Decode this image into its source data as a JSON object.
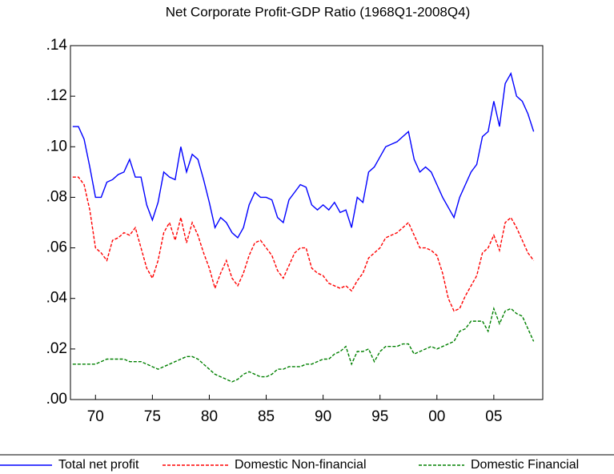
{
  "chart_data": {
    "type": "line",
    "title": "Net Corporate Profit-GDP Ratio (1968Q1-2008Q4)",
    "x": [
      1968,
      1968.5,
      1969,
      1969.5,
      1970,
      1970.5,
      1971,
      1971.5,
      1972,
      1972.5,
      1973,
      1973.5,
      1974,
      1974.5,
      1975,
      1975.5,
      1976,
      1976.5,
      1977,
      1977.5,
      1978,
      1978.5,
      1979,
      1979.5,
      1980,
      1980.5,
      1981,
      1981.5,
      1982,
      1982.5,
      1983,
      1983.5,
      1984,
      1984.5,
      1985,
      1985.5,
      1986,
      1986.5,
      1987,
      1987.5,
      1988,
      1988.5,
      1989,
      1989.5,
      1990,
      1990.5,
      1991,
      1991.5,
      1992,
      1992.5,
      1993,
      1993.5,
      1994,
      1994.5,
      1995,
      1995.5,
      1996,
      1996.5,
      1997,
      1997.5,
      1998,
      1998.5,
      1999,
      1999.5,
      2000,
      2000.5,
      2001,
      2001.5,
      2002,
      2002.5,
      2003,
      2003.5,
      2004,
      2004.5,
      2005,
      2005.5,
      2006,
      2006.5,
      2007,
      2007.5,
      2008,
      2008.5
    ],
    "series": [
      {
        "name": "Total net profit",
        "color": "#0000ff",
        "dash": "solid",
        "values": [
          0.108,
          0.108,
          0.103,
          0.092,
          0.08,
          0.08,
          0.086,
          0.087,
          0.089,
          0.09,
          0.095,
          0.088,
          0.088,
          0.077,
          0.071,
          0.078,
          0.09,
          0.088,
          0.087,
          0.1,
          0.09,
          0.097,
          0.095,
          0.087,
          0.078,
          0.068,
          0.072,
          0.07,
          0.066,
          0.064,
          0.068,
          0.077,
          0.082,
          0.08,
          0.08,
          0.079,
          0.072,
          0.07,
          0.079,
          0.082,
          0.085,
          0.084,
          0.077,
          0.075,
          0.077,
          0.075,
          0.078,
          0.074,
          0.075,
          0.068,
          0.08,
          0.078,
          0.09,
          0.092,
          0.096,
          0.1,
          0.101,
          0.102,
          0.104,
          0.106,
          0.095,
          0.09,
          0.092,
          0.09,
          0.085,
          0.08,
          0.076,
          0.072,
          0.08,
          0.085,
          0.09,
          0.093,
          0.104,
          0.106,
          0.118,
          0.108,
          0.125,
          0.129,
          0.12,
          0.118,
          0.113,
          0.106
        ]
      },
      {
        "name": "Domestic Non-financial",
        "color": "#ff0000",
        "dash": "dashed",
        "values": [
          0.088,
          0.088,
          0.085,
          0.075,
          0.06,
          0.058,
          0.055,
          0.063,
          0.064,
          0.066,
          0.065,
          0.068,
          0.06,
          0.052,
          0.048,
          0.055,
          0.066,
          0.07,
          0.063,
          0.072,
          0.062,
          0.07,
          0.065,
          0.058,
          0.052,
          0.044,
          0.05,
          0.055,
          0.048,
          0.045,
          0.05,
          0.057,
          0.062,
          0.063,
          0.06,
          0.057,
          0.051,
          0.048,
          0.053,
          0.058,
          0.06,
          0.06,
          0.052,
          0.05,
          0.049,
          0.046,
          0.045,
          0.044,
          0.045,
          0.043,
          0.047,
          0.05,
          0.056,
          0.058,
          0.06,
          0.064,
          0.065,
          0.066,
          0.068,
          0.07,
          0.065,
          0.06,
          0.06,
          0.059,
          0.057,
          0.05,
          0.04,
          0.035,
          0.036,
          0.041,
          0.045,
          0.049,
          0.058,
          0.06,
          0.065,
          0.059,
          0.07,
          0.072,
          0.068,
          0.063,
          0.058,
          0.055
        ]
      },
      {
        "name": "Domestic Financial",
        "color": "#008000",
        "dash": "dashed",
        "values": [
          0.014,
          0.014,
          0.014,
          0.014,
          0.014,
          0.015,
          0.016,
          0.016,
          0.016,
          0.016,
          0.015,
          0.015,
          0.015,
          0.014,
          0.013,
          0.012,
          0.013,
          0.014,
          0.015,
          0.016,
          0.017,
          0.017,
          0.016,
          0.014,
          0.012,
          0.01,
          0.009,
          0.008,
          0.007,
          0.008,
          0.01,
          0.011,
          0.01,
          0.009,
          0.009,
          0.01,
          0.012,
          0.012,
          0.013,
          0.013,
          0.013,
          0.014,
          0.014,
          0.015,
          0.016,
          0.016,
          0.018,
          0.019,
          0.021,
          0.014,
          0.019,
          0.019,
          0.02,
          0.015,
          0.019,
          0.021,
          0.021,
          0.021,
          0.022,
          0.022,
          0.018,
          0.019,
          0.02,
          0.021,
          0.02,
          0.021,
          0.022,
          0.023,
          0.027,
          0.028,
          0.031,
          0.031,
          0.031,
          0.027,
          0.036,
          0.03,
          0.035,
          0.036,
          0.034,
          0.033,
          0.028,
          0.023
        ]
      }
    ],
    "xlim": [
      1967.8,
      2009.3
    ],
    "xticks": [
      {
        "value": 1970,
        "label": "70"
      },
      {
        "value": 1975,
        "label": "75"
      },
      {
        "value": 1980,
        "label": "80"
      },
      {
        "value": 1985,
        "label": "85"
      },
      {
        "value": 1990,
        "label": "90"
      },
      {
        "value": 1995,
        "label": "95"
      },
      {
        "value": 2000,
        "label": "00"
      },
      {
        "value": 2005,
        "label": "05"
      }
    ],
    "ylim": [
      0,
      0.14
    ],
    "yticks": [
      {
        "value": 0,
        "label": ".00"
      },
      {
        "value": 0.02,
        "label": ".02"
      },
      {
        "value": 0.04,
        "label": ".04"
      },
      {
        "value": 0.06,
        "label": ".06"
      },
      {
        "value": 0.08,
        "label": ".08"
      },
      {
        "value": 0.1,
        "label": ".10"
      },
      {
        "value": 0.12,
        "label": ".12"
      },
      {
        "value": 0.14,
        "label": ".14"
      }
    ],
    "grid": false
  }
}
